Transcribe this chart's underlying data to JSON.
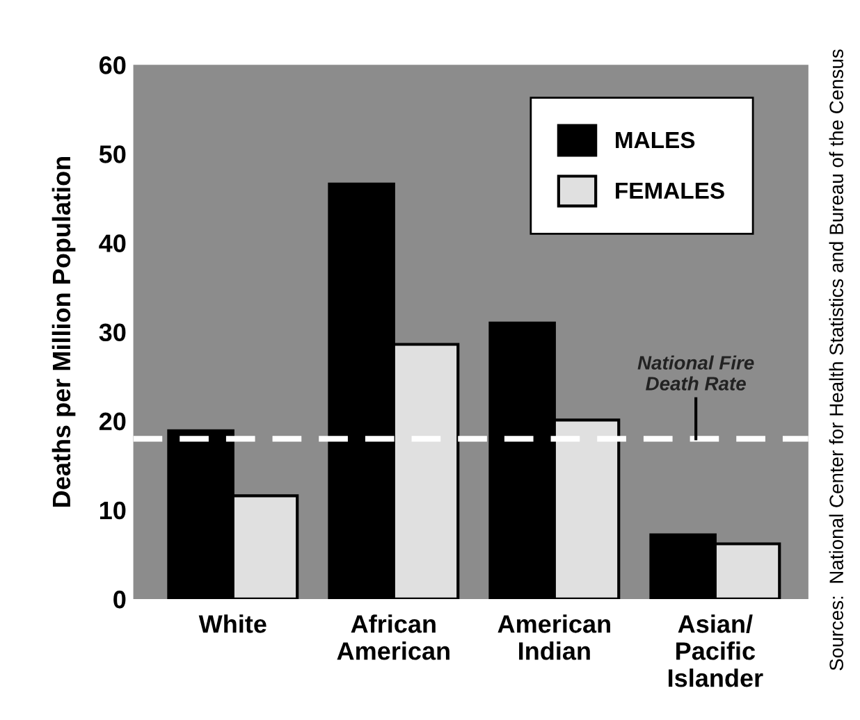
{
  "chart_data": {
    "type": "bar",
    "ylabel": "Deaths per Million Population",
    "categories": [
      "White",
      "African\nAmerican",
      "American\nIndian",
      "Asian/\nPacific\nIslander"
    ],
    "series": [
      {
        "name": "MALES",
        "color": "#000000",
        "values": [
          18.9,
          46.6,
          31.0,
          7.2
        ]
      },
      {
        "name": "FEMALES",
        "color": "#e0e0e0",
        "values": [
          11.6,
          28.6,
          20.1,
          6.2
        ]
      }
    ],
    "ylim": [
      0,
      60
    ],
    "yticks": [
      0,
      10,
      20,
      30,
      40,
      50,
      60
    ],
    "grid": false,
    "legend": "top right",
    "ref_lines": [
      {
        "axis": "y",
        "value": 18.0,
        "label": "National Fire\nDeath Rate",
        "color": "#ffffff",
        "line_style": "dashed"
      }
    ],
    "annotations": [
      "Sources:  National Center for Health Statistics and Bureau of the Census"
    ]
  }
}
